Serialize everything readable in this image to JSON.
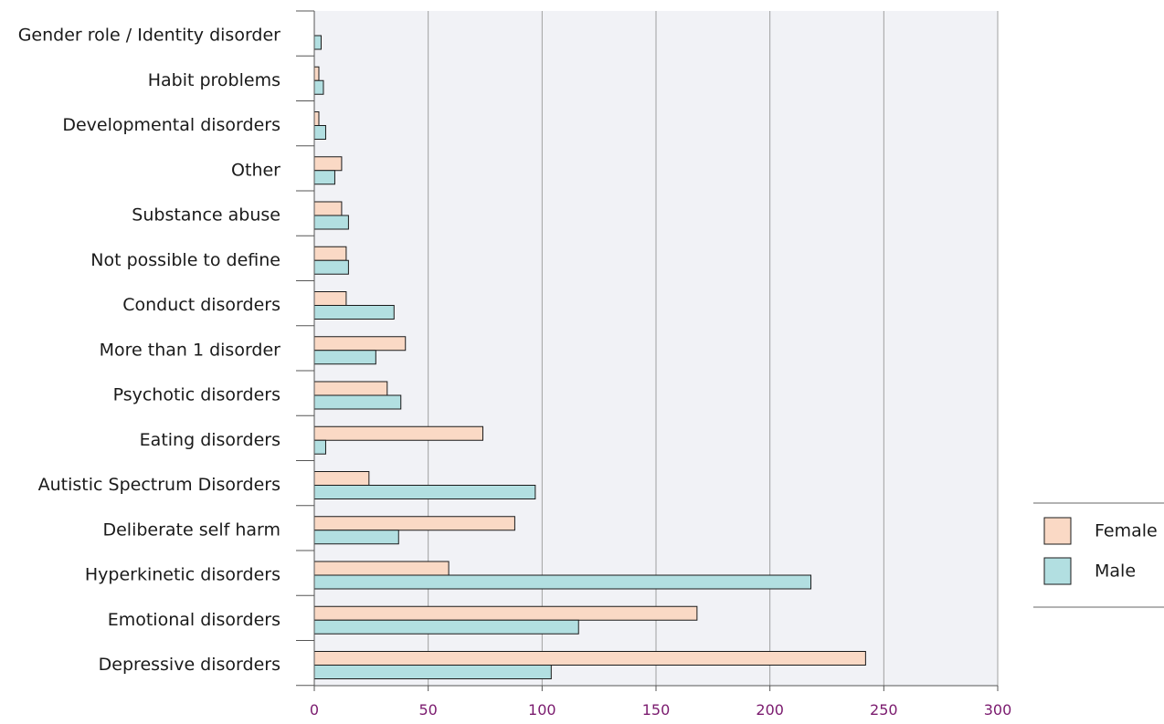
{
  "chart_data": {
    "type": "bar",
    "orientation": "horizontal",
    "categories": [
      "Gender role / Identity disorder",
      "Habit problems",
      "Developmental disorders",
      "Other",
      "Substance abuse",
      "Not possible to define",
      "Conduct disorders",
      "More than 1 disorder",
      "Psychotic disorders",
      "Eating disorders",
      "Autistic Spectrum Disorders",
      "Deliberate self  harm",
      "Hyperkinetic disorders",
      "Emotional disorders",
      "Depressive disorders"
    ],
    "series": [
      {
        "name": "Female",
        "color": "#fad9c5",
        "values": [
          0,
          2,
          2,
          12,
          12,
          14,
          14,
          40,
          32,
          74,
          24,
          88,
          59,
          168,
          242
        ]
      },
      {
        "name": "Male",
        "color": "#b2dfe1",
        "values": [
          3,
          4,
          5,
          9,
          15,
          15,
          35,
          27,
          38,
          5,
          97,
          37,
          218,
          116,
          104
        ]
      }
    ],
    "xlim": [
      0,
      300
    ],
    "xticks": [
      0,
      50,
      100,
      150,
      200,
      250,
      300
    ],
    "grid": true,
    "legend_position": "right",
    "title": "",
    "xlabel": "",
    "ylabel": ""
  },
  "colors": {
    "plot_background": "#f1f2f6",
    "gridline": "#a0a0a0",
    "bar_border": "#1a1a1a",
    "tick_label": "#7a1a6e"
  }
}
